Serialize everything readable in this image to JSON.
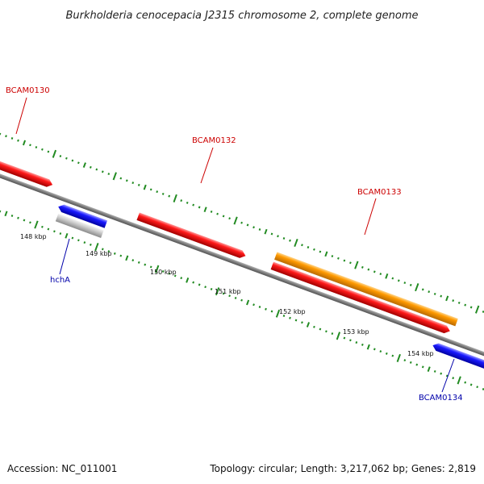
{
  "title": "Burkholderia cenocepacia J2315 chromosome 2, complete genome",
  "footer": {
    "accession": "Accession: NC_011001",
    "summary": "Topology: circular; Length: 3,217,062 bp; Genes: 2,819"
  },
  "colors": {
    "forward_gene": "#ff0000",
    "forward_gene_alt": "#ff9900",
    "reverse_gene": "#0000ff",
    "pseudo_gene": "#c8c8c8",
    "backbone": "#808080",
    "tick": "#228b22",
    "label_forward": "#cc0000",
    "label_reverse": "#0000aa"
  },
  "genes": [
    {
      "name": "BCAM0130",
      "strand": "+",
      "color": "forward_gene",
      "labeled": true
    },
    {
      "name": "BCAM0132",
      "strand": "+",
      "color": "forward_gene",
      "labeled": true
    },
    {
      "name": "BCAM0133",
      "strand": "+",
      "color": "forward_gene_alt",
      "labeled": true
    },
    {
      "name": "",
      "strand": "+",
      "color": "forward_gene",
      "labeled": false
    },
    {
      "name": "hchA",
      "strand": "-",
      "color": "reverse_gene",
      "labeled": true
    },
    {
      "name": "",
      "strand": "-",
      "color": "pseudo_gene",
      "labeled": false
    },
    {
      "name": "BCAM0134",
      "strand": "-",
      "color": "reverse_gene",
      "labeled": true
    }
  ],
  "ruler": {
    "labels": [
      "148 kbp",
      "149 kbp",
      "150 kbp",
      "151 kbp",
      "152 kbp",
      "153 kbp",
      "154 kbp"
    ]
  }
}
